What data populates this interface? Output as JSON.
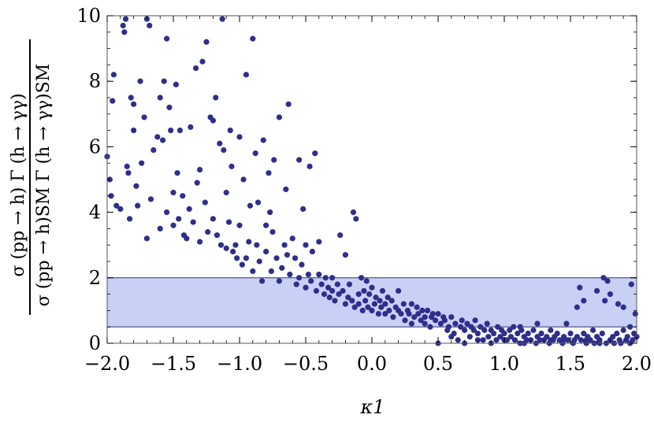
{
  "chart_data": {
    "type": "scatter",
    "xlabel": "κ1",
    "ylabel_numerator": "σ (pp → h) Γ (h → γγ)",
    "ylabel_denominator": "σ (pp → h)SM Γ (h → γγ)SM",
    "xlim": [
      -2.0,
      2.0
    ],
    "ylim": [
      0,
      10
    ],
    "x_ticks": [
      "-2.0",
      "-1.5",
      "-1.0",
      "-0.5",
      "0.0",
      "0.5",
      "1.0",
      "1.5",
      "2.0"
    ],
    "y_ticks": [
      "0",
      "2",
      "4",
      "6",
      "8",
      "10"
    ],
    "band": {
      "y_low": 0.5,
      "y_high": 2.0
    },
    "colors": {
      "points": "#2e2f8c",
      "band_fill": "#c9d0f5",
      "band_edge": "#6b6f9a"
    },
    "series": [
      {
        "points": [
          [
            -2.0,
            5.7
          ],
          [
            -1.98,
            5.0
          ],
          [
            -1.97,
            4.5
          ],
          [
            -1.96,
            7.4
          ],
          [
            -1.95,
            8.2
          ],
          [
            -1.93,
            4.2
          ],
          [
            -1.9,
            4.1
          ],
          [
            -1.88,
            9.7
          ],
          [
            -1.87,
            9.5
          ],
          [
            -1.86,
            9.9
          ],
          [
            -1.85,
            5.4
          ],
          [
            -1.84,
            5.2
          ],
          [
            -1.83,
            3.8
          ],
          [
            -1.82,
            7.5
          ],
          [
            -1.8,
            6.5
          ],
          [
            -1.8,
            7.3
          ],
          [
            -1.78,
            4.8
          ],
          [
            -1.77,
            4.2
          ],
          [
            -1.75,
            8.0
          ],
          [
            -1.74,
            5.5
          ],
          [
            -1.72,
            6.9
          ],
          [
            -1.7,
            3.2
          ],
          [
            -1.7,
            9.9
          ],
          [
            -1.68,
            9.7
          ],
          [
            -1.67,
            4.4
          ],
          [
            -1.65,
            5.9
          ],
          [
            -1.62,
            6.3
          ],
          [
            -1.6,
            7.5
          ],
          [
            -1.6,
            3.5
          ],
          [
            -1.58,
            6.2
          ],
          [
            -1.57,
            8.0
          ],
          [
            -1.55,
            9.3
          ],
          [
            -1.55,
            4.0
          ],
          [
            -1.53,
            7.2
          ],
          [
            -1.52,
            6.5
          ],
          [
            -1.5,
            4.6
          ],
          [
            -1.5,
            3.6
          ],
          [
            -1.48,
            7.9
          ],
          [
            -1.47,
            5.2
          ],
          [
            -1.46,
            3.8
          ],
          [
            -1.45,
            6.5
          ],
          [
            -1.43,
            4.5
          ],
          [
            -1.42,
            3.3
          ],
          [
            -1.4,
            3.2
          ],
          [
            -1.38,
            4.1
          ],
          [
            -1.37,
            6.6
          ],
          [
            -1.35,
            3.7
          ],
          [
            -1.33,
            8.4
          ],
          [
            -1.32,
            4.9
          ],
          [
            -1.3,
            5.3
          ],
          [
            -1.3,
            3.1
          ],
          [
            -1.28,
            8.6
          ],
          [
            -1.26,
            4.3
          ],
          [
            -1.25,
            9.2
          ],
          [
            -1.24,
            3.4
          ],
          [
            -1.22,
            6.9
          ],
          [
            -1.2,
            6.8
          ],
          [
            -1.2,
            3.8
          ],
          [
            -1.18,
            7.5
          ],
          [
            -1.17,
            3.3
          ],
          [
            -1.15,
            6.1
          ],
          [
            -1.14,
            3.0
          ],
          [
            -1.13,
            9.9
          ],
          [
            -1.12,
            5.9
          ],
          [
            -1.1,
            4.6
          ],
          [
            -1.1,
            2.9
          ],
          [
            -1.08,
            3.7
          ],
          [
            -1.07,
            6.5
          ],
          [
            -1.06,
            5.4
          ],
          [
            -1.05,
            2.8
          ],
          [
            -1.03,
            3.0
          ],
          [
            -1.02,
            2.6
          ],
          [
            -1.0,
            6.3
          ],
          [
            -1.0,
            3.6
          ],
          [
            -0.98,
            2.4
          ],
          [
            -0.97,
            5.0
          ],
          [
            -0.95,
            2.6
          ],
          [
            -0.95,
            8.2
          ],
          [
            -0.93,
            3.1
          ],
          [
            -0.92,
            4.2
          ],
          [
            -0.9,
            9.3
          ],
          [
            -0.9,
            2.2
          ],
          [
            -0.88,
            5.8
          ],
          [
            -0.87,
            3.0
          ],
          [
            -0.86,
            4.3
          ],
          [
            -0.85,
            2.5
          ],
          [
            -0.83,
            1.9
          ],
          [
            -0.82,
            6.2
          ],
          [
            -0.8,
            3.6
          ],
          [
            -0.8,
            2.8
          ],
          [
            -0.78,
            5.2
          ],
          [
            -0.77,
            4.0
          ],
          [
            -0.76,
            2.2
          ],
          [
            -0.75,
            3.4
          ],
          [
            -0.74,
            5.6
          ],
          [
            -0.72,
            2.6
          ],
          [
            -0.7,
            6.9
          ],
          [
            -0.7,
            1.9
          ],
          [
            -0.68,
            2.3
          ],
          [
            -0.66,
            3.0
          ],
          [
            -0.65,
            4.7
          ],
          [
            -0.64,
            2.7
          ],
          [
            -0.63,
            7.3
          ],
          [
            -0.62,
            2.1
          ],
          [
            -0.6,
            3.2
          ],
          [
            -0.58,
            2.6
          ],
          [
            -0.57,
            1.8
          ],
          [
            -0.55,
            5.6
          ],
          [
            -0.55,
            2.0
          ],
          [
            -0.53,
            2.4
          ],
          [
            -0.52,
            4.1
          ],
          [
            -0.5,
            1.7
          ],
          [
            -0.5,
            3.0
          ],
          [
            -0.48,
            2.1
          ],
          [
            -0.47,
            5.4
          ],
          [
            -0.46,
            1.9
          ],
          [
            -0.45,
            2.8
          ],
          [
            -0.43,
            5.8
          ],
          [
            -0.42,
            1.6
          ],
          [
            -0.4,
            2.1
          ],
          [
            -0.4,
            3.1
          ],
          [
            -0.38,
            1.8
          ],
          [
            -0.36,
            1.5
          ],
          [
            -0.35,
            2.0
          ],
          [
            -0.33,
            1.7
          ],
          [
            -0.32,
            1.4
          ],
          [
            -0.3,
            2.0
          ],
          [
            -0.3,
            1.6
          ],
          [
            -0.28,
            1.3
          ],
          [
            -0.26,
            1.8
          ],
          [
            -0.25,
            1.5
          ],
          [
            -0.24,
            3.3
          ],
          [
            -0.22,
            1.6
          ],
          [
            -0.2,
            1.2
          ],
          [
            -0.2,
            2.7
          ],
          [
            -0.18,
            1.4
          ],
          [
            -0.17,
            1.8
          ],
          [
            -0.15,
            1.3
          ],
          [
            -0.14,
            4.0
          ],
          [
            -0.13,
            1.1
          ],
          [
            -0.12,
            3.8
          ],
          [
            -0.1,
            1.5
          ],
          [
            -0.1,
            1.2
          ],
          [
            -0.08,
            2.0
          ],
          [
            -0.07,
            1.0
          ],
          [
            -0.06,
            1.6
          ],
          [
            -0.05,
            1.3
          ],
          [
            -0.04,
            1.9
          ],
          [
            -0.03,
            1.1
          ],
          [
            -0.02,
            1.5
          ],
          [
            0.0,
            1.0
          ],
          [
            0.0,
            1.7
          ],
          [
            0.02,
            1.2
          ],
          [
            0.03,
            1.4
          ],
          [
            0.05,
            0.9
          ],
          [
            0.06,
            1.3
          ],
          [
            0.07,
            1.1
          ],
          [
            0.08,
            1.6
          ],
          [
            0.1,
            1.2
          ],
          [
            0.1,
            0.9
          ],
          [
            0.12,
            1.4
          ],
          [
            0.13,
            1.0
          ],
          [
            0.15,
            1.3
          ],
          [
            0.16,
            0.8
          ],
          [
            0.18,
            1.1
          ],
          [
            0.2,
            1.0
          ],
          [
            0.2,
            1.6
          ],
          [
            0.22,
            0.9
          ],
          [
            0.24,
            1.2
          ],
          [
            0.25,
            0.7
          ],
          [
            0.27,
            1.0
          ],
          [
            0.28,
            0.9
          ],
          [
            0.3,
            1.2
          ],
          [
            0.3,
            0.6
          ],
          [
            0.32,
            0.8
          ],
          [
            0.34,
            1.1
          ],
          [
            0.35,
            0.9
          ],
          [
            0.37,
            0.7
          ],
          [
            0.38,
            1.0
          ],
          [
            0.4,
            0.8
          ],
          [
            0.4,
            0.6
          ],
          [
            0.42,
            1.0
          ],
          [
            0.44,
            0.5
          ],
          [
            0.45,
            0.8
          ],
          [
            0.46,
            0.9
          ],
          [
            0.48,
            0.7
          ],
          [
            0.5,
            0.0
          ],
          [
            0.5,
            0.9
          ],
          [
            0.52,
            0.6
          ],
          [
            0.54,
            0.8
          ],
          [
            0.55,
            0.7
          ],
          [
            0.57,
            0.4
          ],
          [
            0.58,
            0.5
          ],
          [
            0.6,
            0.8
          ],
          [
            0.62,
            0.3
          ],
          [
            0.63,
            0.6
          ],
          [
            0.65,
            0.1
          ],
          [
            0.67,
            0.5
          ],
          [
            0.68,
            0.7
          ],
          [
            0.7,
            0.4
          ],
          [
            0.72,
            0.6
          ],
          [
            0.74,
            0.2
          ],
          [
            0.75,
            0.5
          ],
          [
            0.77,
            0.4
          ],
          [
            0.78,
            0.7
          ],
          [
            0.8,
            0.3
          ],
          [
            0.82,
            0.5
          ],
          [
            0.84,
            0.1
          ],
          [
            0.85,
            0.4
          ],
          [
            0.87,
            0.6
          ],
          [
            0.88,
            0.2
          ],
          [
            0.9,
            0.4
          ],
          [
            0.92,
            0.3
          ],
          [
            0.94,
            0.1
          ],
          [
            0.95,
            0.5
          ],
          [
            0.97,
            0.2
          ],
          [
            0.98,
            0.4
          ],
          [
            1.0,
            0.3
          ],
          [
            1.02,
            0.1
          ],
          [
            1.04,
            0.4
          ],
          [
            1.05,
            0.2
          ],
          [
            1.07,
            0.5
          ],
          [
            1.08,
            0.1
          ],
          [
            1.1,
            0.3
          ],
          [
            1.12,
            0.0
          ],
          [
            1.13,
            0.4
          ],
          [
            1.15,
            0.2
          ],
          [
            1.17,
            0.1
          ],
          [
            1.18,
            0.3
          ],
          [
            1.2,
            0.1
          ],
          [
            1.22,
            0.4
          ],
          [
            1.24,
            0.0
          ],
          [
            1.25,
            0.2
          ],
          [
            1.27,
            0.1
          ],
          [
            1.28,
            0.3
          ],
          [
            1.3,
            0.1
          ],
          [
            1.32,
            0.2
          ],
          [
            1.34,
            0.0
          ],
          [
            1.35,
            0.4
          ],
          [
            1.37,
            0.1
          ],
          [
            1.38,
            0.2
          ],
          [
            1.4,
            0.3
          ],
          [
            1.42,
            0.1
          ],
          [
            1.44,
            0.0
          ],
          [
            1.45,
            0.2
          ],
          [
            1.47,
            0.6
          ],
          [
            1.48,
            0.1
          ],
          [
            1.5,
            0.3
          ],
          [
            1.52,
            0.0
          ],
          [
            1.53,
            0.1
          ],
          [
            1.55,
            0.2
          ],
          [
            1.57,
            1.7
          ],
          [
            1.58,
            0.1
          ],
          [
            1.6,
            0.3
          ],
          [
            1.62,
            0.0
          ],
          [
            1.63,
            0.2
          ],
          [
            1.65,
            0.1
          ],
          [
            1.67,
            0.4
          ],
          [
            1.68,
            0.0
          ],
          [
            1.7,
            0.2
          ],
          [
            1.72,
            0.1
          ],
          [
            1.74,
            0.3
          ],
          [
            1.75,
            2.0
          ],
          [
            1.76,
            1.3
          ],
          [
            1.77,
            0.0
          ],
          [
            1.78,
            1.9
          ],
          [
            1.8,
            0.1
          ],
          [
            1.8,
            1.5
          ],
          [
            1.82,
            0.2
          ],
          [
            1.83,
            0.0
          ],
          [
            1.85,
            0.3
          ],
          [
            1.86,
            1.2
          ],
          [
            1.87,
            0.1
          ],
          [
            1.88,
            0.0
          ],
          [
            1.9,
            0.4
          ],
          [
            1.9,
            1.1
          ],
          [
            1.92,
            0.1
          ],
          [
            1.93,
            0.2
          ],
          [
            1.95,
            0.0
          ],
          [
            1.95,
            0.5
          ],
          [
            1.96,
            1.8
          ],
          [
            1.97,
            0.1
          ],
          [
            1.98,
            0.3
          ],
          [
            1.99,
            0.9
          ],
          [
            2.0,
            0.2
          ],
          [
            1.12,
            0.5
          ],
          [
            1.25,
            0.6
          ],
          [
            1.55,
            1.1
          ],
          [
            1.6,
            1.3
          ],
          [
            1.7,
            1.6
          ],
          [
            0.6,
            0.2
          ],
          [
            0.7,
            0.0
          ],
          [
            0.8,
            0.1
          ],
          [
            0.9,
            0.0
          ],
          [
            1.0,
            0.1
          ],
          [
            1.15,
            0.0
          ],
          [
            1.35,
            0.1
          ],
          [
            1.45,
            0.1
          ],
          [
            1.62,
            0.1
          ],
          [
            1.72,
            0.0
          ]
        ]
      }
    ]
  }
}
